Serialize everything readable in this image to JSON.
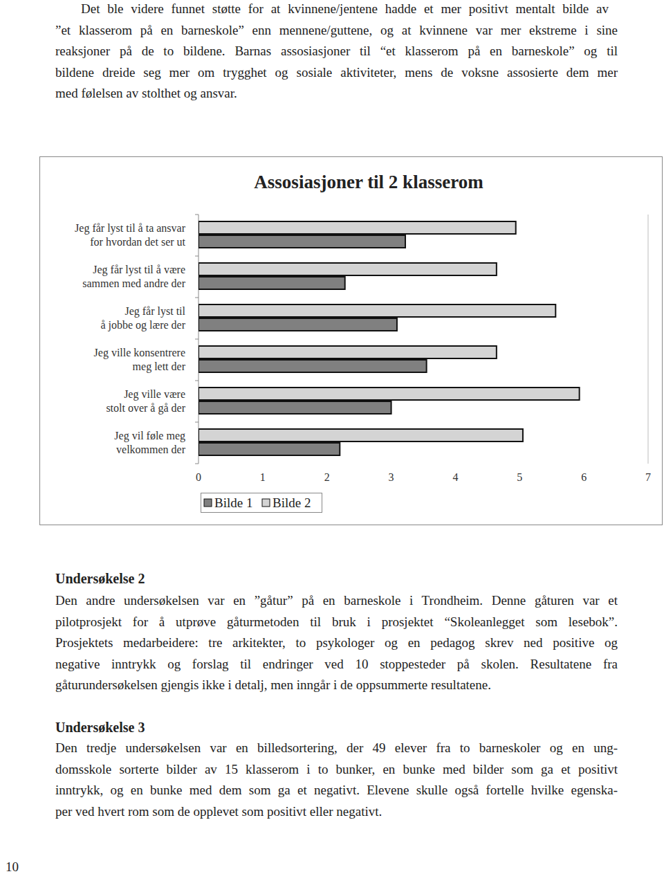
{
  "paragraph_1": {
    "lines": [
      "Det ble videre funnet støtte for at kvinnene/jentene hadde et mer positivt mentalt bilde av",
      "”et klasserom på en barneskole” enn mennene/guttene, og at kvinnene var mer ekstreme i sine",
      "reaksjoner på de to bildene. Barnas assosiasjoner til “et klasserom på en barneskole” og til",
      "bildene dreide seg mer om trygghet og sosiale aktiviteter, mens de voksne assosierte dem mer",
      "med følelsen av stolthet og ansvar."
    ]
  },
  "chart_data": {
    "type": "bar",
    "orientation": "horizontal",
    "title": "Assosiasjoner til 2 klasserom",
    "categories": [
      "Jeg får lyst til å ta ansvar\nfor hvordan det ser ut",
      "Jeg får lyst til å være\nsammen med andre der",
      "Jeg får lyst til\nå jobbe og lære der",
      "Jeg ville konsentrere\nmeg lett der",
      "Jeg ville være\nstolt over å gå der",
      "Jeg vil føle meg\nvelkommen der"
    ],
    "series": [
      {
        "name": "Bilde 1",
        "color": "#808080",
        "values": [
          3.22,
          2.28,
          3.09,
          3.55,
          3.0,
          2.2
        ]
      },
      {
        "name": "Bilde 2",
        "color": "#d4d4d4",
        "values": [
          4.94,
          4.64,
          5.56,
          4.64,
          5.93,
          5.05
        ]
      }
    ],
    "xlim": [
      0,
      7
    ],
    "xticks": [
      0,
      1,
      2,
      3,
      4,
      5,
      6,
      7
    ],
    "legend": "bottom",
    "grid": false
  },
  "section_2": {
    "heading": "Undersøkelse 2",
    "lines": [
      "Den andre undersøkelsen var en ”gåtur” på en barneskole i Trondheim. Denne gåturen var et",
      "pilotprosjekt for å utprøve gåturmetoden til bruk i prosjektet “Skoleanlegget som lesebok”.",
      "Prosjektets medarbeidere: tre arkitekter, to psykologer og en pedagog skrev ned positive og",
      "negative inntrykk og forslag til endringer ved 10 stoppesteder på skolen. Resultatene fra",
      "gåturundersøkelsen gjengis ikke i detalj, men inngår i de oppsummerte resultatene."
    ]
  },
  "section_3": {
    "heading": "Undersøkelse 3",
    "lines": [
      "Den tredje undersøkelsen var en billedsortering, der 49 elever fra to barneskoler og en ung-",
      "domsskole sorterte bilder av 15 klasserom i to bunker, en bunke med bilder som ga et positivt",
      "inntrykk, og en bunke med dem som ga et negativt. Elevene skulle også fortelle hvilke egenska-",
      "per ved hvert rom som de opplevet som positivt eller negativt."
    ]
  },
  "page_number": "10"
}
